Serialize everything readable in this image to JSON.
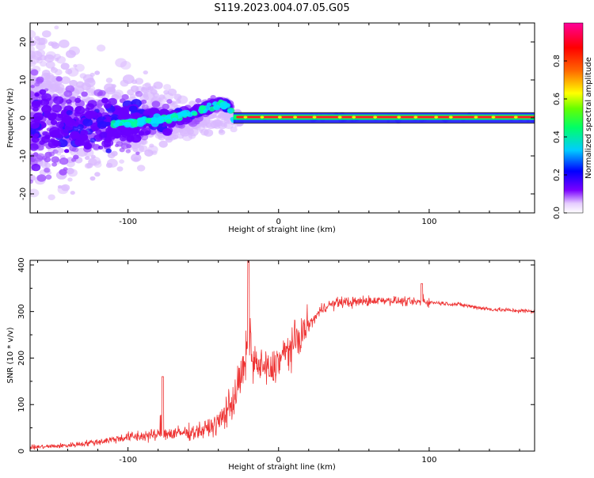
{
  "figure_title": "S119.2023.004.07.05.G05",
  "chart_data": [
    {
      "type": "heatmap",
      "title": "S119.2023.004.07.05.G05",
      "xlabel": "Height of straight line (km)",
      "ylabel": "Frequency (Hz)",
      "xlim": [
        -165,
        170
      ],
      "ylim": [
        -25,
        25
      ],
      "xticks": [
        -100,
        0,
        100
      ],
      "yticks": [
        -20,
        -10,
        0,
        10,
        20
      ],
      "xtick_labels": [
        "-100",
        "0",
        "100"
      ],
      "ytick_labels": [
        "-20",
        "-10",
        "0",
        "10",
        "20"
      ],
      "colorbar": {
        "label": "Normalized spectral amplitude",
        "range": [
          0,
          1
        ],
        "ticks": [
          0.0,
          0.2,
          0.4,
          0.6,
          0.8
        ],
        "tick_labels": [
          "0.0",
          "0.2",
          "0.4",
          "0.6",
          "0.8"
        ],
        "colormap": "rainbow (violet-blue-cyan-green-yellow-red-magenta)"
      },
      "dominant_frequency_track": {
        "x": [
          -130,
          -110,
          -90,
          -70,
          -55,
          -45,
          -38,
          -33,
          -30,
          -20,
          -10,
          0,
          50,
          100,
          170
        ],
        "frequency_hz": [
          -2,
          -1.5,
          -1,
          0,
          1.5,
          3,
          4,
          3,
          -1,
          0,
          0,
          0.3,
          0.2,
          0.1,
          0.1
        ]
      }
    },
    {
      "type": "line",
      "xlabel": "Height of straight line (km)",
      "ylabel": "SNR (10 * v/v)",
      "xlim": [
        -165,
        170
      ],
      "ylim": [
        0,
        410
      ],
      "xticks": [
        -100,
        0,
        100
      ],
      "yticks": [
        0,
        100,
        200,
        300,
        400
      ],
      "xtick_labels": [
        "-100",
        "0",
        "100"
      ],
      "ytick_labels": [
        "0",
        "100",
        "200",
        "300",
        "400"
      ],
      "series": [
        {
          "name": "SNR",
          "color": "#ee3333",
          "x": [
            -165,
            -140,
            -120,
            -100,
            -80,
            -60,
            -50,
            -40,
            -30,
            -25,
            -20,
            -15,
            -10,
            -5,
            0,
            10,
            20,
            25,
            30,
            40,
            50,
            70,
            90,
            100,
            120,
            140,
            170
          ],
          "values": [
            8,
            12,
            20,
            30,
            35,
            40,
            45,
            60,
            110,
            160,
            200,
            185,
            180,
            170,
            195,
            230,
            270,
            290,
            310,
            320,
            320,
            325,
            320,
            320,
            315,
            305,
            300
          ]
        }
      ],
      "spikes": [
        {
          "x": -77,
          "value": 160
        },
        {
          "x": -20,
          "value": 410
        },
        {
          "x": 95,
          "value": 360
        }
      ]
    }
  ]
}
